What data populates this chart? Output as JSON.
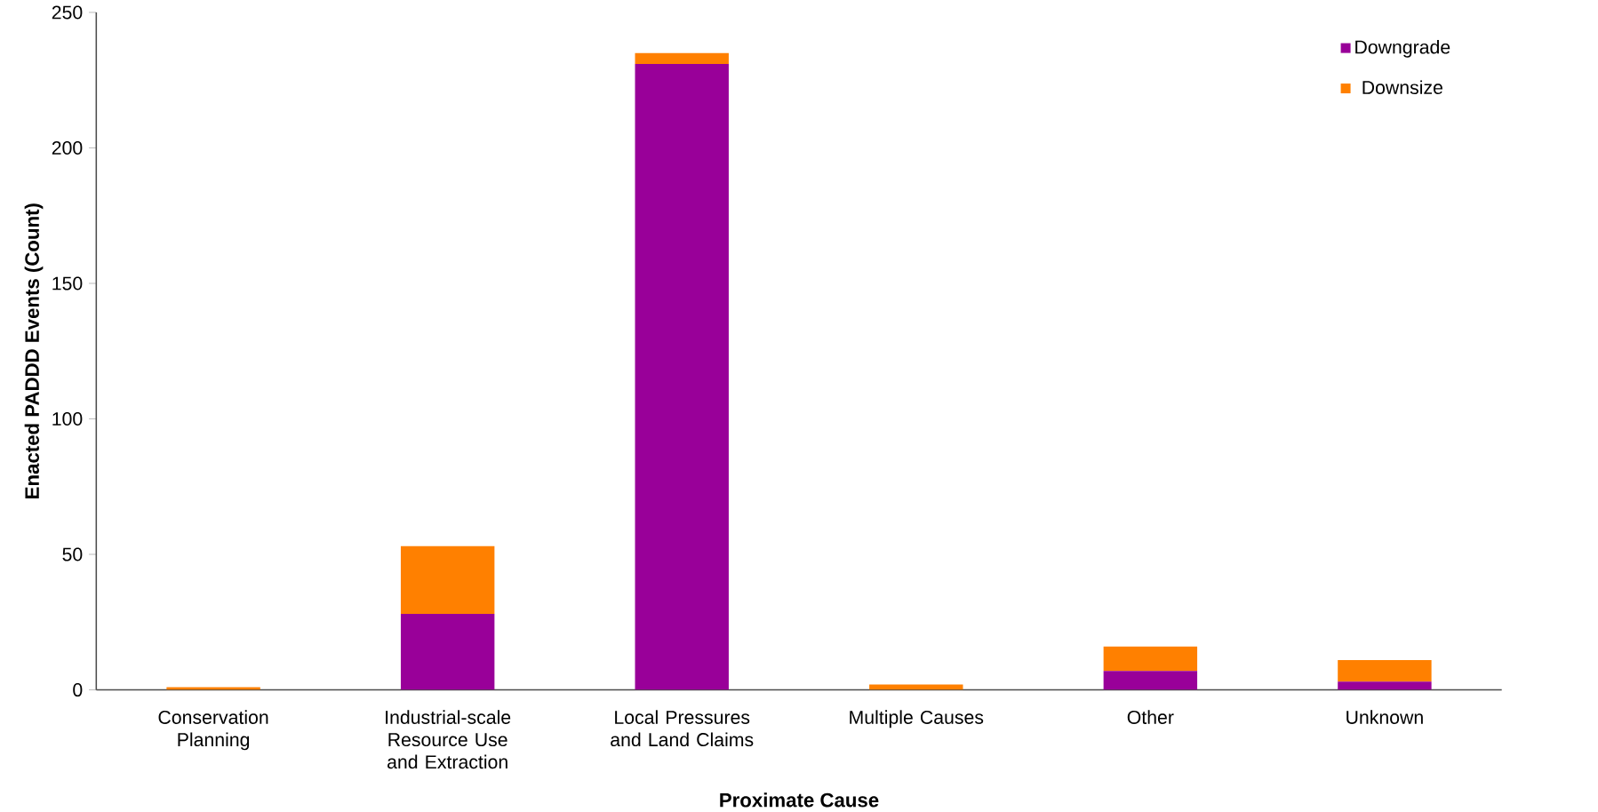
{
  "chart_data": {
    "type": "bar",
    "stacked": true,
    "xlabel": "Proximate Cause",
    "ylabel": "Enacted PADDD Events (Count)",
    "categories": [
      "Conservation Planning",
      "Industrial-scale Resource Use and Extraction",
      "Local Pressures and Land Claims",
      "Multiple Causes",
      "Other",
      "Unknown"
    ],
    "series": [
      {
        "name": "Downgrade",
        "color": "#990099",
        "values": [
          0,
          28,
          231,
          0,
          7,
          3
        ]
      },
      {
        "name": "Downsize",
        "color": "#ff8000",
        "values": [
          1,
          25,
          4,
          2,
          9,
          8
        ]
      }
    ],
    "ylim": [
      0,
      250
    ],
    "yticks": [
      0,
      50,
      100,
      150,
      200,
      250
    ],
    "legend": "top right",
    "grid": false
  }
}
